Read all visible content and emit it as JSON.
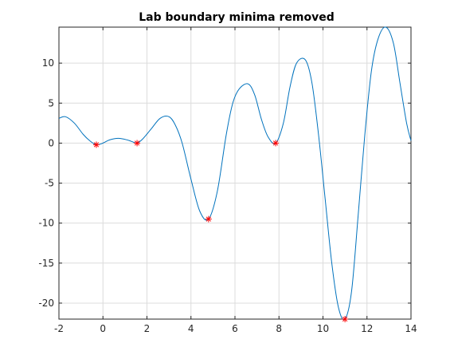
{
  "chart_data": {
    "type": "line",
    "title": "Lab boundary minima removed",
    "xlabel": "",
    "ylabel": "",
    "xlim": [
      -2,
      14
    ],
    "ylim": [
      -22,
      14.5
    ],
    "xticks": [
      -2,
      0,
      2,
      4,
      6,
      8,
      10,
      12,
      14
    ],
    "yticks": [
      -20,
      -15,
      -10,
      -5,
      0,
      5,
      10
    ],
    "grid": true,
    "colors": {
      "line": "#0072bd",
      "marker": "#ff0000"
    },
    "series": [
      {
        "style": "line",
        "x": [
          -2.0,
          -1.7,
          -1.3,
          -0.9,
          -0.6,
          -0.3,
          0.0,
          0.3,
          0.7,
          1.1,
          1.4,
          1.55,
          1.8,
          2.2,
          2.6,
          3.0,
          3.3,
          3.6,
          4.0,
          4.4,
          4.8,
          5.2,
          5.6,
          5.9,
          6.2,
          6.6,
          6.9,
          7.2,
          7.5,
          7.85,
          8.2,
          8.5,
          8.8,
          9.2,
          9.5,
          9.8,
          10.1,
          10.4,
          10.7,
          11.0,
          11.3,
          11.6,
          11.9,
          12.2,
          12.5,
          12.85,
          13.2,
          13.5,
          13.8,
          14.0
        ],
        "y": [
          3.1,
          3.3,
          2.5,
          1.1,
          0.3,
          -0.2,
          0.0,
          0.4,
          0.6,
          0.4,
          0.1,
          0.0,
          0.5,
          1.8,
          3.1,
          3.3,
          2.2,
          0.0,
          -4.5,
          -8.5,
          -9.5,
          -6.0,
          1.0,
          5.0,
          6.8,
          7.4,
          6.0,
          3.0,
          0.8,
          0.0,
          2.5,
          7.0,
          10.0,
          10.4,
          7.5,
          1.0,
          -7.0,
          -15.0,
          -20.5,
          -22.0,
          -18.5,
          -9.0,
          1.0,
          9.0,
          13.0,
          14.5,
          12.5,
          7.5,
          2.5,
          0.3
        ]
      },
      {
        "style": "markers",
        "marker": "asterisk",
        "x": [
          -0.3,
          1.55,
          4.8,
          7.85,
          11.0
        ],
        "y": [
          -0.2,
          0.0,
          -9.5,
          0.0,
          -22.0
        ]
      }
    ]
  }
}
